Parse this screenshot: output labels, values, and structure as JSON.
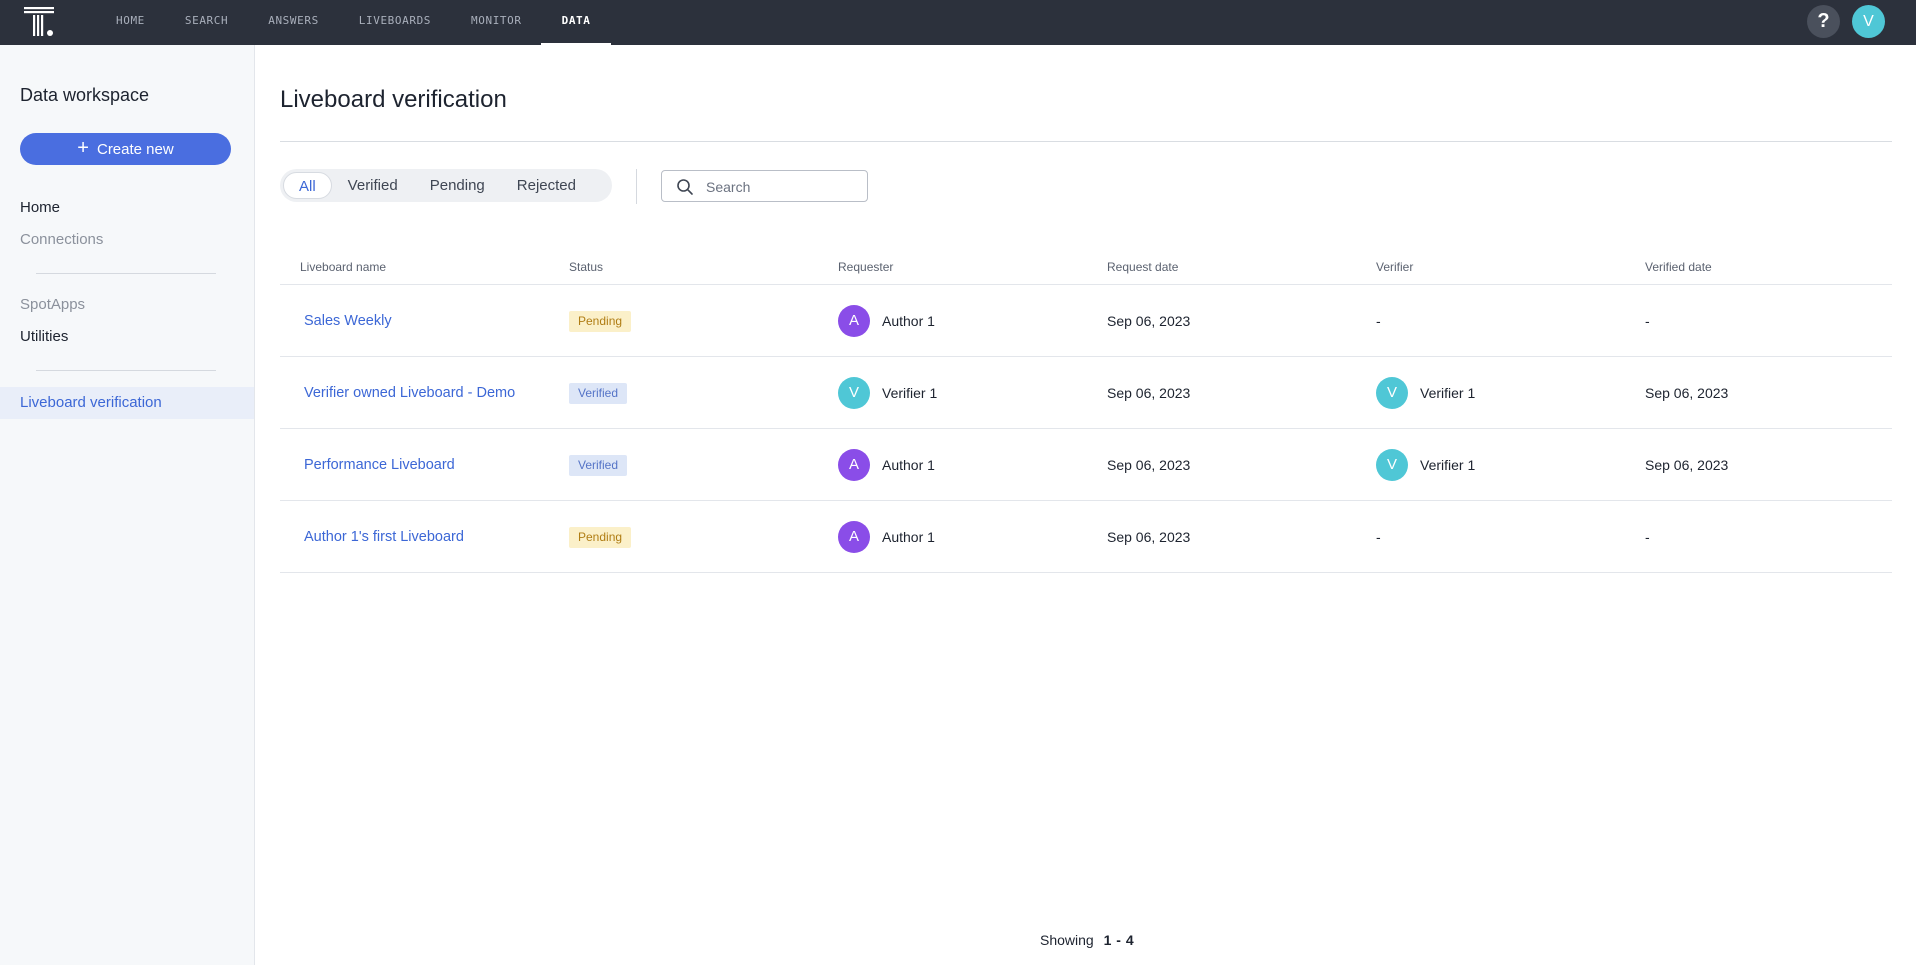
{
  "nav": {
    "items": [
      {
        "label": "HOME",
        "active": false
      },
      {
        "label": "SEARCH",
        "active": false
      },
      {
        "label": "ANSWERS",
        "active": false
      },
      {
        "label": "LIVEBOARDS",
        "active": false
      },
      {
        "label": "MONITOR",
        "active": false
      },
      {
        "label": "DATA",
        "active": true
      }
    ],
    "help_label": "?",
    "user_initial": "V"
  },
  "sidebar": {
    "title": "Data workspace",
    "create_label": "Create new",
    "items": [
      "Home",
      "Connections",
      "SpotApps",
      "Utilities"
    ],
    "active_item": "Liveboard verification"
  },
  "main": {
    "title": "Liveboard verification",
    "filters": [
      "All",
      "Verified",
      "Pending",
      "Rejected"
    ],
    "active_filter": "All",
    "search_placeholder": "Search"
  },
  "table": {
    "columns": [
      "Liveboard name",
      "Status",
      "Requester",
      "Request date",
      "Verifier",
      "Verified date"
    ],
    "rows": [
      {
        "name": "Sales Weekly",
        "status": "Pending",
        "requester_initial": "A",
        "requester": "Author 1",
        "request_date": "Sep 06, 2023",
        "verifier_initial": "",
        "verifier": "-",
        "verified_date": "-"
      },
      {
        "name": "Verifier owned Liveboard - Demo",
        "status": "Verified",
        "requester_initial": "V",
        "requester": "Verifier 1",
        "request_date": "Sep 06, 2023",
        "verifier_initial": "V",
        "verifier": "Verifier 1",
        "verified_date": "Sep 06, 2023"
      },
      {
        "name": "Performance Liveboard",
        "status": "Verified",
        "requester_initial": "A",
        "requester": "Author 1",
        "request_date": "Sep 06, 2023",
        "verifier_initial": "V",
        "verifier": "Verifier 1",
        "verified_date": "Sep 06, 2023"
      },
      {
        "name": "Author 1's first Liveboard",
        "status": "Pending",
        "requester_initial": "A",
        "requester": "Author 1",
        "request_date": "Sep 06, 2023",
        "verifier_initial": "",
        "verifier": "-",
        "verified_date": "-"
      }
    ]
  },
  "footer": {
    "showing_label": "Showing",
    "range": "1 - 4"
  },
  "colors": {
    "accent": "#3c67d6",
    "topbar": "#2c313c",
    "avatar_author": "#8a4de8",
    "avatar_verifier": "#4fc7d6",
    "pending_bg": "#fbf0c9",
    "verified_bg": "#dde6f7"
  }
}
